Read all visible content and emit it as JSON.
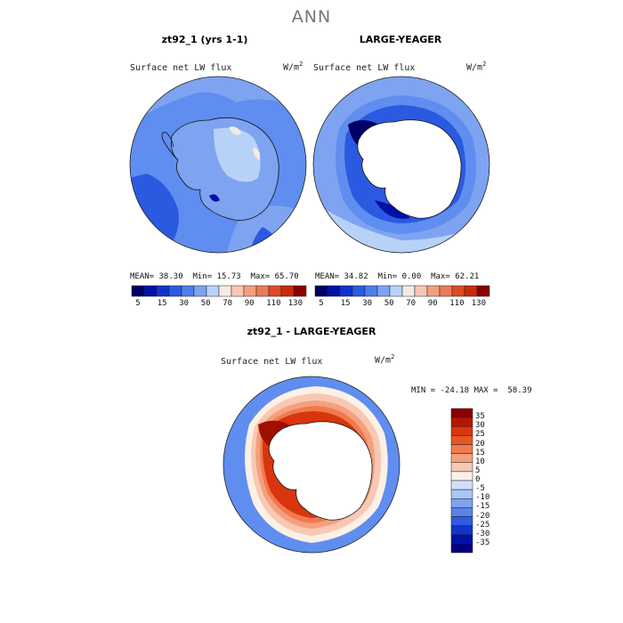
{
  "title": "ANN",
  "panels": [
    {
      "title": "zt92_1 (yrs 1-1)",
      "variable": "Surface net LW flux",
      "unit_base": "W/m",
      "unit_exp": "2",
      "stats": {
        "mean_label": "MEAN=",
        "mean": "38.30",
        "min_label": "Min=",
        "min": "15.73",
        "max_label": "Max=",
        "max": "65.70"
      }
    },
    {
      "title": "LARGE-YEAGER",
      "variable": "Surface net LW flux",
      "unit_base": "W/m",
      "unit_exp": "2",
      "stats": {
        "mean_label": "MEAN=",
        "mean": "34.82",
        "min_label": "Min=",
        "min": "0.00",
        "max_label": "Max=",
        "max": "62.21"
      }
    },
    {
      "title": "zt92_1 - LARGE-YEAGER",
      "variable": "Surface net LW flux",
      "unit_base": "W/m",
      "unit_exp": "2",
      "stats": {
        "min_label": "MIN =",
        "min": "-24.18",
        "max_label": "MAX =",
        "max": "58.39"
      }
    }
  ],
  "colorbar_abs": {
    "ticks": [
      "5",
      "15",
      "30",
      "50",
      "70",
      "90",
      "110",
      "130"
    ],
    "colors": [
      "#000066",
      "#0011a8",
      "#1133cc",
      "#2a5ae0",
      "#4f7de8",
      "#7ea3f0",
      "#b8d2f7",
      "#f3ebe3",
      "#f7c7b2",
      "#f1a07f",
      "#ea7a58",
      "#dd4a23",
      "#c92a0e",
      "#8a0000"
    ]
  },
  "colorbar_diff": {
    "ticks": [
      "35",
      "30",
      "25",
      "20",
      "15",
      "10",
      "5",
      "0",
      "-5",
      "-10",
      "-15",
      "-20",
      "-25",
      "-30",
      "-35"
    ],
    "colors": [
      "#8a0000",
      "#b81500",
      "#d8350f",
      "#e95522",
      "#f07a4e",
      "#f4a07e",
      "#f8c8b2",
      "#fdf0e6",
      "#cfe0fb",
      "#a8c6f6",
      "#7ea3f0",
      "#5a82e8",
      "#2f5ce0",
      "#1133cc",
      "#0011a8",
      "#000080"
    ]
  },
  "map_colors": {
    "abs_base": "#5f8ef0",
    "abs_light": "#7ea3f0",
    "abs_dark": "#2a5ae0",
    "abs_pale": "#b8d2f7",
    "abs_warm": "#f3ebe3",
    "abs_deep": "#0011a8",
    "land_white": "#ffffff",
    "diff_base": "#5f8ef0",
    "diff_red": "#d8350f",
    "diff_darkred": "#a01000",
    "diff_orange": "#f07a4e",
    "diff_salmon": "#f4a07e",
    "diff_peach": "#f8c8b2",
    "diff_cream": "#fdf0e6"
  }
}
